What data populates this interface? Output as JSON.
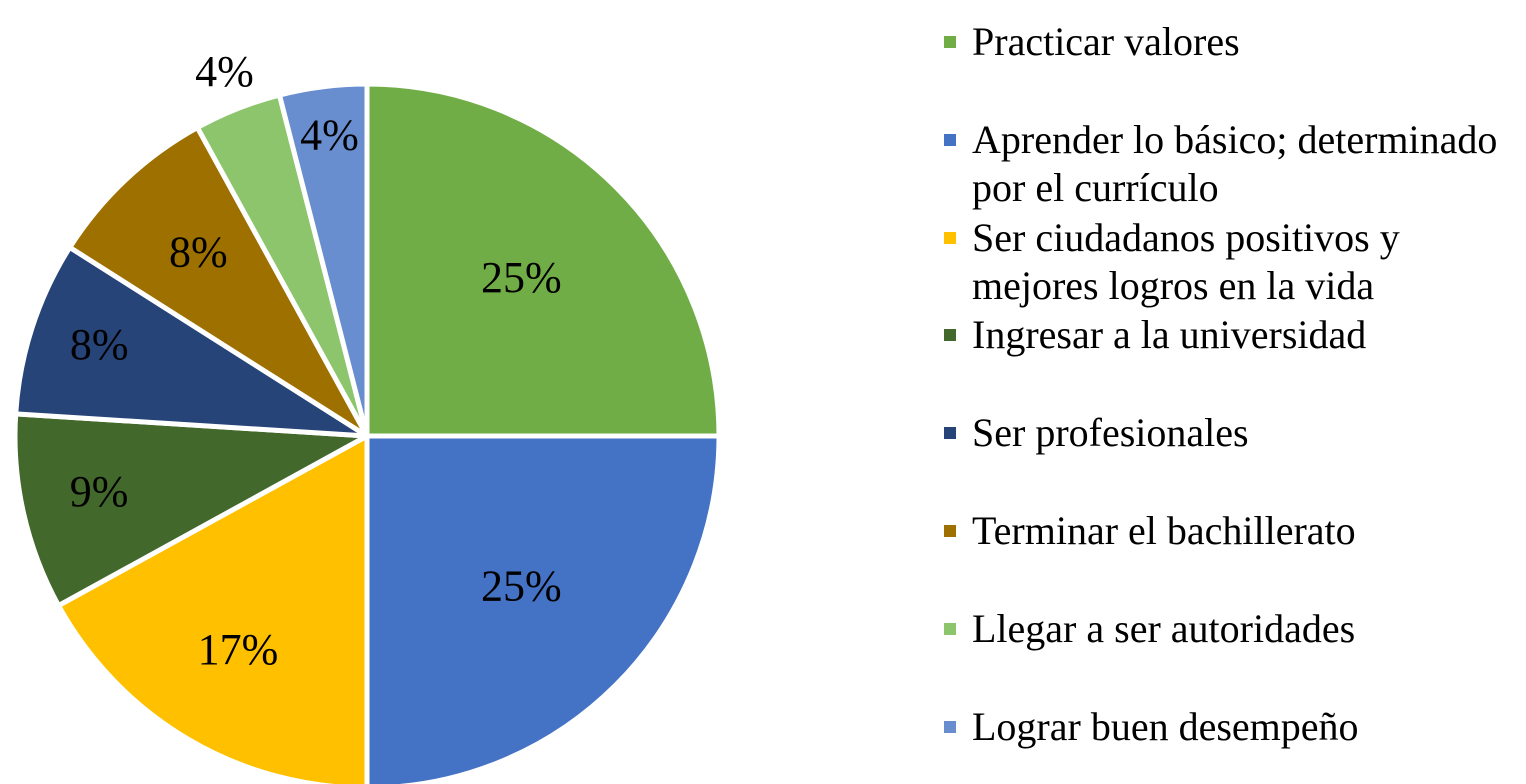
{
  "chart_data": {
    "type": "pie",
    "categories": [
      "Practicar valores",
      "Aprender lo básico; determinado por el currículo",
      "Ser ciudadanos positivos y mejores logros en la vida",
      "Ingresar a la universidad",
      "Ser profesionales",
      "Terminar el bachillerato",
      "Llegar a ser autoridades",
      "Lograr buen desempeño"
    ],
    "values": [
      25,
      25,
      17,
      9,
      8,
      8,
      4,
      4
    ],
    "value_labels": [
      "25%",
      "25%",
      "17%",
      "9%",
      "8%",
      "8%",
      "4%",
      "4%"
    ],
    "colors": [
      "#70ad47",
      "#4472c4",
      "#ffc000",
      "#43682b",
      "#264478",
      "#9e7000",
      "#8cc56c",
      "#698ed0"
    ],
    "legend": "right"
  }
}
